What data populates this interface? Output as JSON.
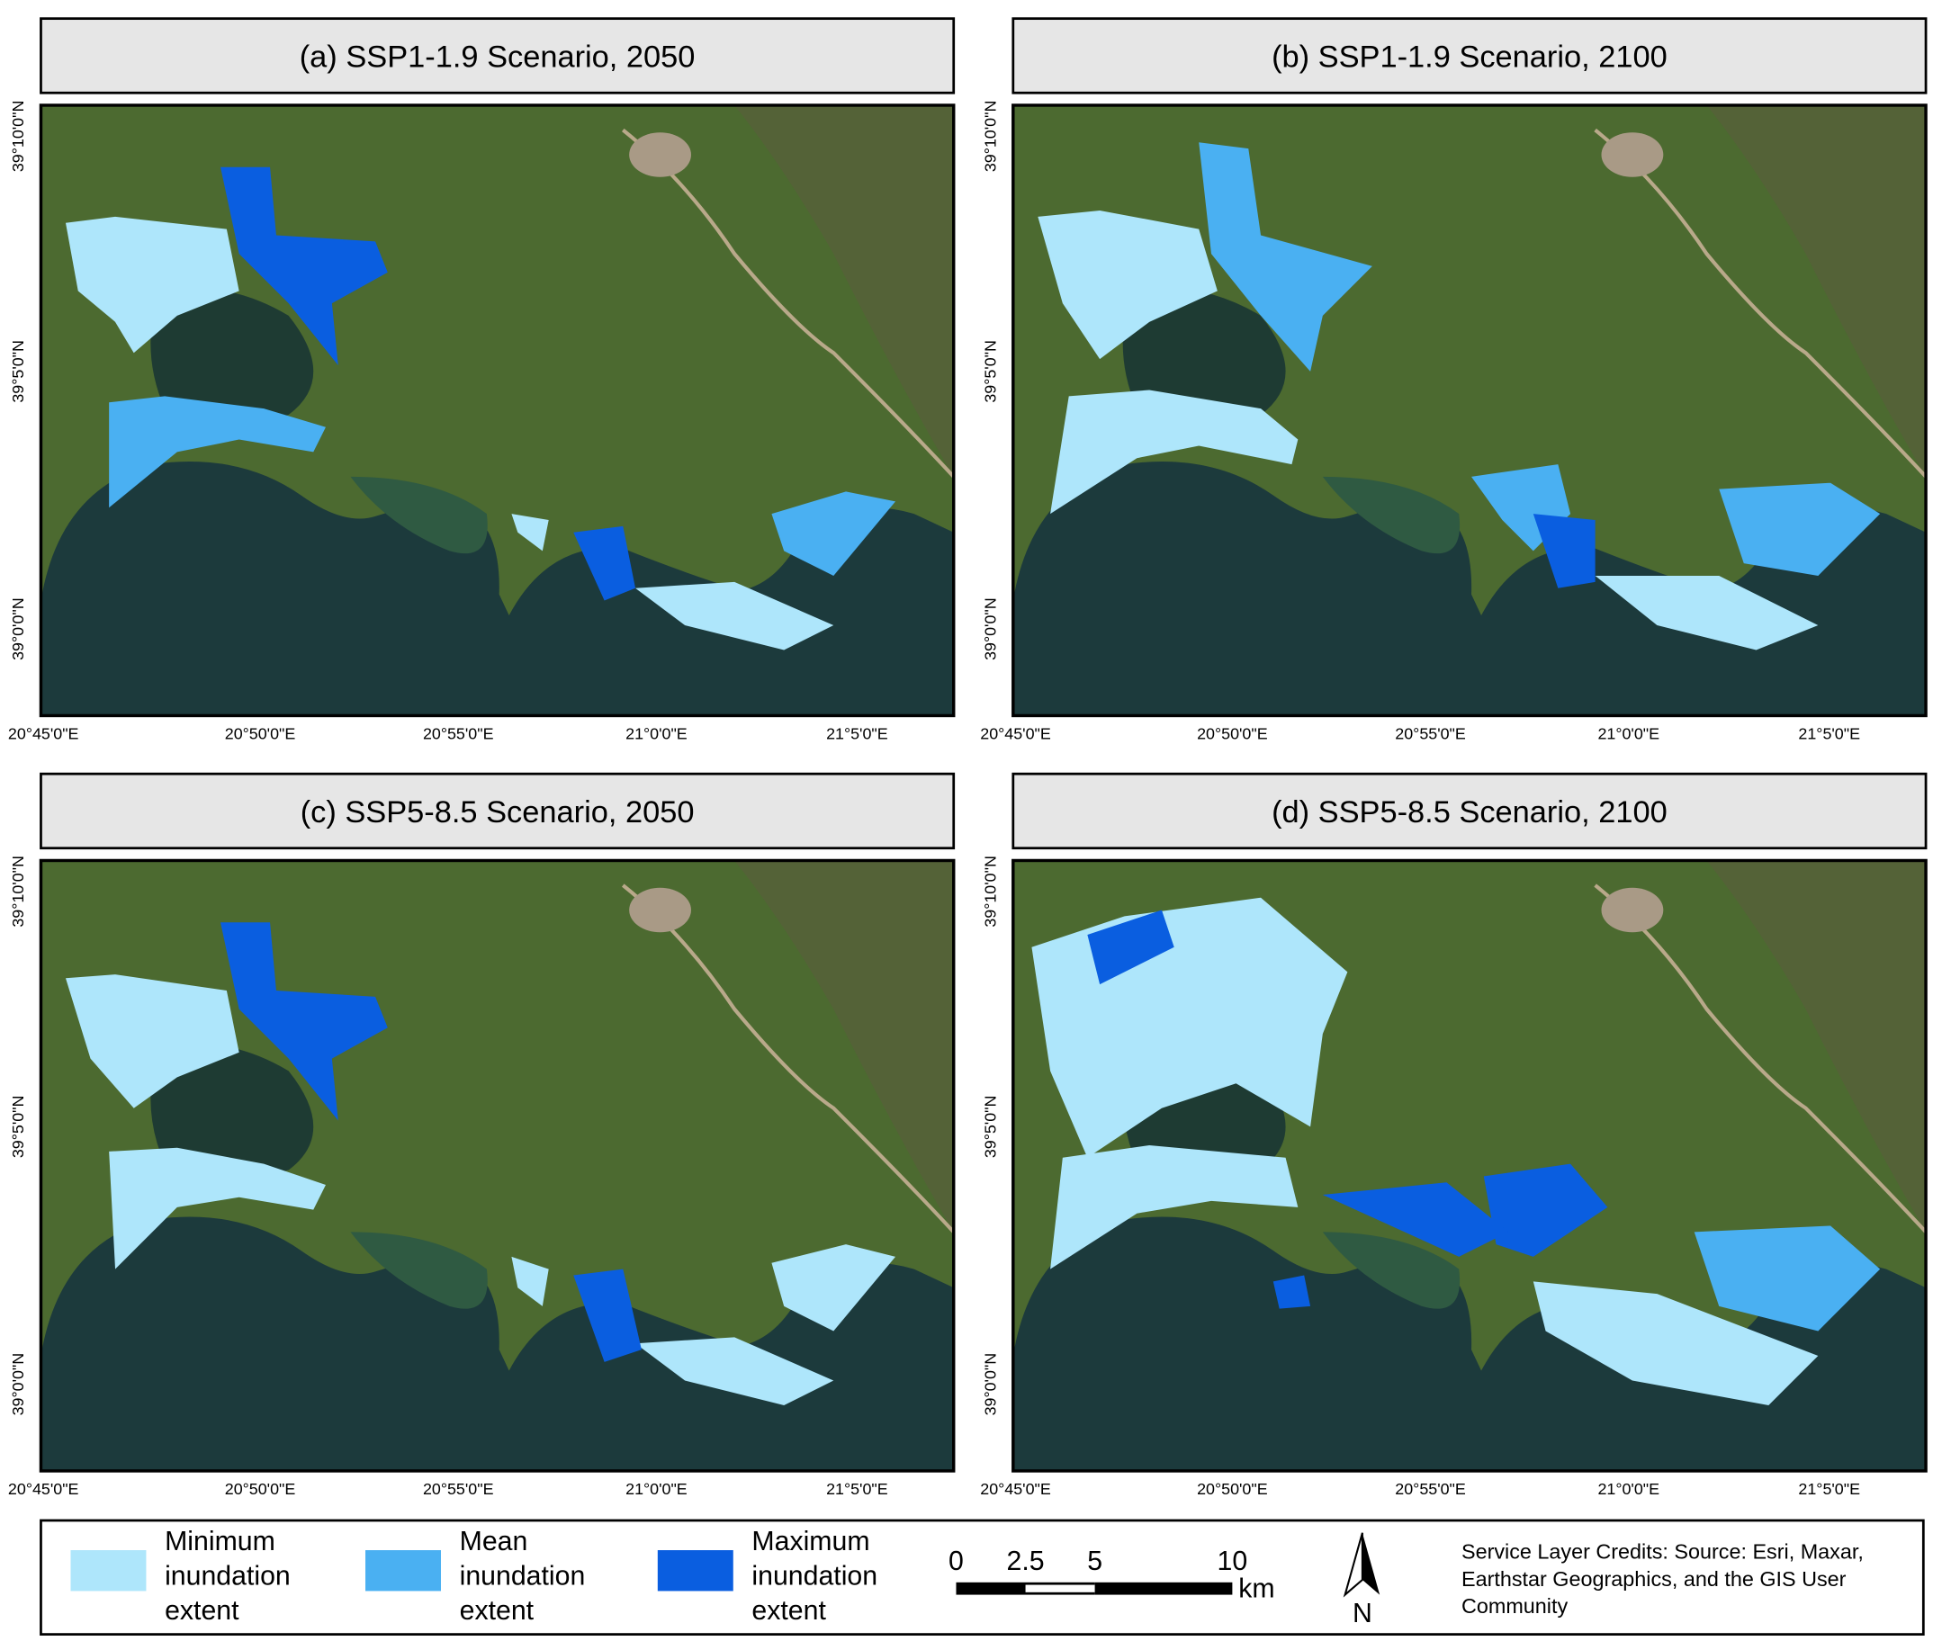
{
  "panels": [
    {
      "title": "(a) SSP1-1.9 Scenario, 2050"
    },
    {
      "title": "(b) SSP1-1.9 Scenario, 2100"
    },
    {
      "title": "(c) SSP5-8.5 Scenario, 2050"
    },
    {
      "title": "(d) SSP5-8.5 Scenario, 2100"
    }
  ],
  "lon_labels": [
    "20°45'0\"E",
    "20°50'0\"E",
    "20°55'0\"E",
    "21°0'0\"E",
    "21°5'0\"E"
  ],
  "lat_labels": [
    "39°10'0\"N",
    "39°5'0\"N",
    "39°0'0\"N"
  ],
  "legend": [
    {
      "lines": [
        "Minimum",
        "inundation",
        "extent"
      ],
      "color": "#aee6fb"
    },
    {
      "lines": [
        "Mean",
        "inundation",
        "extent"
      ],
      "color": "#4ab0f2"
    },
    {
      "lines": [
        "Maximum",
        "inundation",
        "extent"
      ],
      "color": "#0a5ee0"
    }
  ],
  "scale_bar": {
    "labels": [
      "0",
      "2.5",
      "5",
      "10"
    ],
    "unit": "km"
  },
  "north": "N",
  "credits": [
    "Service Layer Credits: Source: Esri, Maxar,",
    "Earthstar Geographics, and the GIS User",
    "Community"
  ]
}
